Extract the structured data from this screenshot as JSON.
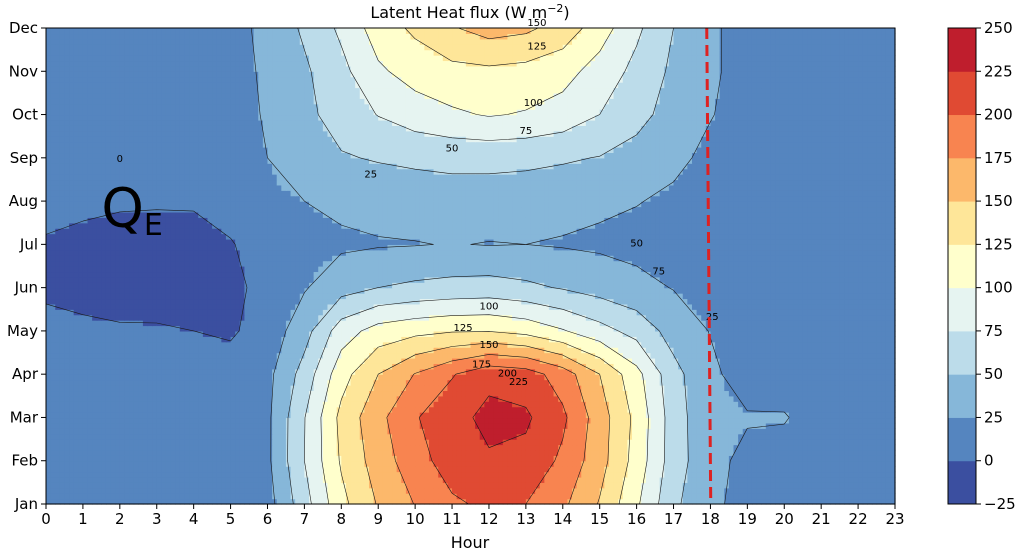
{
  "chart_data": {
    "type": "heatmap",
    "title_main": "Latent Heat flux (W m",
    "title_exp": "−2",
    "title_close": ")",
    "xlabel": "Hour",
    "ylabel": "",
    "x": [
      0,
      1,
      2,
      3,
      4,
      5,
      6,
      7,
      8,
      9,
      10,
      11,
      12,
      13,
      14,
      15,
      16,
      17,
      18,
      19,
      20,
      21,
      22,
      23
    ],
    "y": [
      "Jan",
      "Feb",
      "Mar",
      "Apr",
      "May",
      "Jun",
      "Jul",
      "Aug",
      "Sep",
      "Oct",
      "Nov",
      "Dec"
    ],
    "x_tick_labels": [
      "0",
      "1",
      "2",
      "3",
      "4",
      "5",
      "6",
      "7",
      "8",
      "9",
      "10",
      "11",
      "12",
      "13",
      "14",
      "15",
      "16",
      "17",
      "18",
      "19",
      "20",
      "21",
      "22",
      "23"
    ],
    "y_tick_labels": [
      "Jan",
      "Feb",
      "Mar",
      "Apr",
      "May",
      "Jun",
      "Jul",
      "Aug",
      "Sep",
      "Oct",
      "Nov",
      "Dec"
    ],
    "xlim": [
      0,
      23
    ],
    "colorbar": {
      "levels": [
        -25,
        0,
        25,
        50,
        75,
        100,
        125,
        150,
        175,
        200,
        225,
        250
      ],
      "tick_labels": [
        "−25",
        "0",
        "25",
        "50",
        "75",
        "100",
        "125",
        "150",
        "175",
        "200",
        "225",
        "250"
      ],
      "colors": [
        "#3b4fa0",
        "#5585bf",
        "#86b7d9",
        "#bcdcea",
        "#e6f4f1",
        "#ffffcc",
        "#fee699",
        "#fcb86b",
        "#f88450",
        "#e04a33",
        "#bf1e2d"
      ]
    },
    "z_values": [
      [
        12,
        12,
        12,
        12,
        12,
        12,
        15,
        65,
        118,
        152,
        176,
        196,
        205,
        200,
        180,
        148,
        104,
        55,
        30,
        17,
        13,
        12,
        12,
        12
      ],
      [
        12,
        12,
        12,
        12,
        12,
        12,
        20,
        75,
        128,
        162,
        190,
        212,
        222,
        218,
        195,
        160,
        115,
        62,
        32,
        19,
        14,
        12,
        12,
        12
      ],
      [
        11,
        11,
        11,
        11,
        11,
        11,
        20,
        74,
        132,
        168,
        198,
        216,
        232,
        229,
        205,
        162,
        118,
        62,
        30,
        27,
        27,
        12,
        12,
        12
      ],
      [
        10,
        10,
        10,
        10,
        10,
        10,
        18,
        60,
        115,
        150,
        176,
        198,
        218,
        212,
        188,
        150,
        108,
        58,
        30,
        14,
        11,
        10,
        10,
        10
      ],
      [
        5,
        3,
        2,
        2,
        0,
        -3,
        10,
        40,
        88,
        110,
        118,
        123,
        124,
        117,
        102,
        84,
        66,
        40,
        24,
        12,
        11,
        10,
        10,
        10
      ],
      [
        -3,
        -5,
        -8,
        -9,
        -10,
        -8,
        10,
        23,
        40,
        50,
        55,
        58,
        60,
        55,
        48,
        40,
        32,
        24,
        15,
        12,
        11,
        10,
        10,
        10
      ],
      [
        -3,
        -7,
        -12,
        -12,
        -10,
        -2,
        14,
        18,
        21,
        23,
        24,
        26,
        24,
        25,
        23,
        21,
        18,
        14,
        11,
        10,
        10,
        10,
        10,
        10
      ],
      [
        10,
        6,
        4,
        3,
        3,
        12,
        20,
        25,
        30,
        34,
        36,
        38,
        38,
        36,
        33,
        29,
        26,
        21,
        12,
        10,
        10,
        10,
        10,
        10
      ],
      [
        10,
        10,
        10,
        10,
        10,
        13,
        25,
        40,
        48,
        52,
        55,
        57,
        57,
        56,
        53,
        49,
        41,
        30,
        20,
        12,
        10,
        10,
        10,
        10
      ],
      [
        10,
        10,
        10,
        10,
        10,
        13,
        28,
        44,
        60,
        76,
        88,
        96,
        102,
        98,
        90,
        75,
        58,
        40,
        26,
        17,
        12,
        10,
        10,
        10
      ],
      [
        10,
        10,
        10,
        10,
        10,
        14,
        30,
        46,
        68,
        96,
        110,
        118,
        120,
        117,
        109,
        90,
        68,
        45,
        28,
        18,
        13,
        10,
        10,
        10
      ],
      [
        10,
        10,
        10,
        10,
        10,
        16,
        32,
        54,
        80,
        112,
        130,
        148,
        160,
        155,
        140,
        112,
        80,
        50,
        28,
        18,
        13,
        10,
        10,
        10
      ]
    ],
    "contour_labels": [
      {
        "text": "0",
        "x": 2.0,
        "y": 7.9
      },
      {
        "text": "25",
        "x": 8.8,
        "y": 7.55
      },
      {
        "text": "50",
        "x": 11.0,
        "y": 8.15
      },
      {
        "text": "75",
        "x": 13.0,
        "y": 8.55
      },
      {
        "text": "100",
        "x": 13.2,
        "y": 9.2
      },
      {
        "text": "125",
        "x": 13.3,
        "y": 10.5
      },
      {
        "text": "150",
        "x": 13.3,
        "y": 11.05
      },
      {
        "text": "50",
        "x": 16.0,
        "y": 5.95
      },
      {
        "text": "75",
        "x": 16.6,
        "y": 5.3
      },
      {
        "text": "25",
        "x": 18.05,
        "y": 4.25
      },
      {
        "text": "100",
        "x": 12.0,
        "y": 4.5
      },
      {
        "text": "125",
        "x": 11.3,
        "y": 4.0
      },
      {
        "text": "150",
        "x": 12.0,
        "y": 3.6
      },
      {
        "text": "175",
        "x": 11.8,
        "y": 3.15
      },
      {
        "text": "200",
        "x": 12.5,
        "y": 2.95
      },
      {
        "text": "225",
        "x": 12.8,
        "y": 2.75
      }
    ],
    "vertical_line": {
      "x": 17.9,
      "color": "#dd2222",
      "style": "dashed"
    },
    "annotation": {
      "text": "Q",
      "subscript": "E",
      "x": 1.5,
      "y": 6.4
    },
    "grid": false
  }
}
